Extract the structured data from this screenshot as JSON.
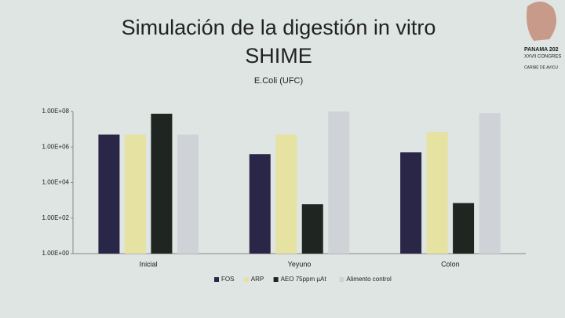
{
  "chart_data": {
    "type": "bar",
    "title": "Simulación de la digestión in vitro",
    "subtitle": "SHIME",
    "chart_title": "E.Coli (UFC)",
    "categories": [
      "Inicial",
      "Yeyuno",
      "Colon"
    ],
    "series": [
      {
        "name": "FOS",
        "color": "#2a2647",
        "values": [
          5000000,
          400000,
          500000
        ]
      },
      {
        "name": "ARP",
        "color": "#e6e2a2",
        "values": [
          5000000,
          5000000,
          7000000
        ]
      },
      {
        "name": "AEO 75ppm µAt",
        "color": "#1f2521",
        "values": [
          75000000,
          600,
          700
        ]
      },
      {
        "name": "Alimento control",
        "color": "#cfd3d8",
        "values": [
          5000000,
          100000000,
          80000000
        ]
      }
    ],
    "ylim": [
      1,
      100000000
    ],
    "log_scale": true,
    "yticks": [
      {
        "value": 1,
        "label": "1.00E+00"
      },
      {
        "value": 100,
        "label": "1.00E+02"
      },
      {
        "value": 10000,
        "label": "1.00E+04"
      },
      {
        "value": 1000000,
        "label": "1.00E+06"
      },
      {
        "value": 100000000,
        "label": "1.00E+08"
      }
    ],
    "legend": "bottom"
  },
  "logo": {
    "lines": [
      "PANAMA 202",
      "XXVII CONGRES",
      "CARIBE DE AVICU"
    ]
  }
}
